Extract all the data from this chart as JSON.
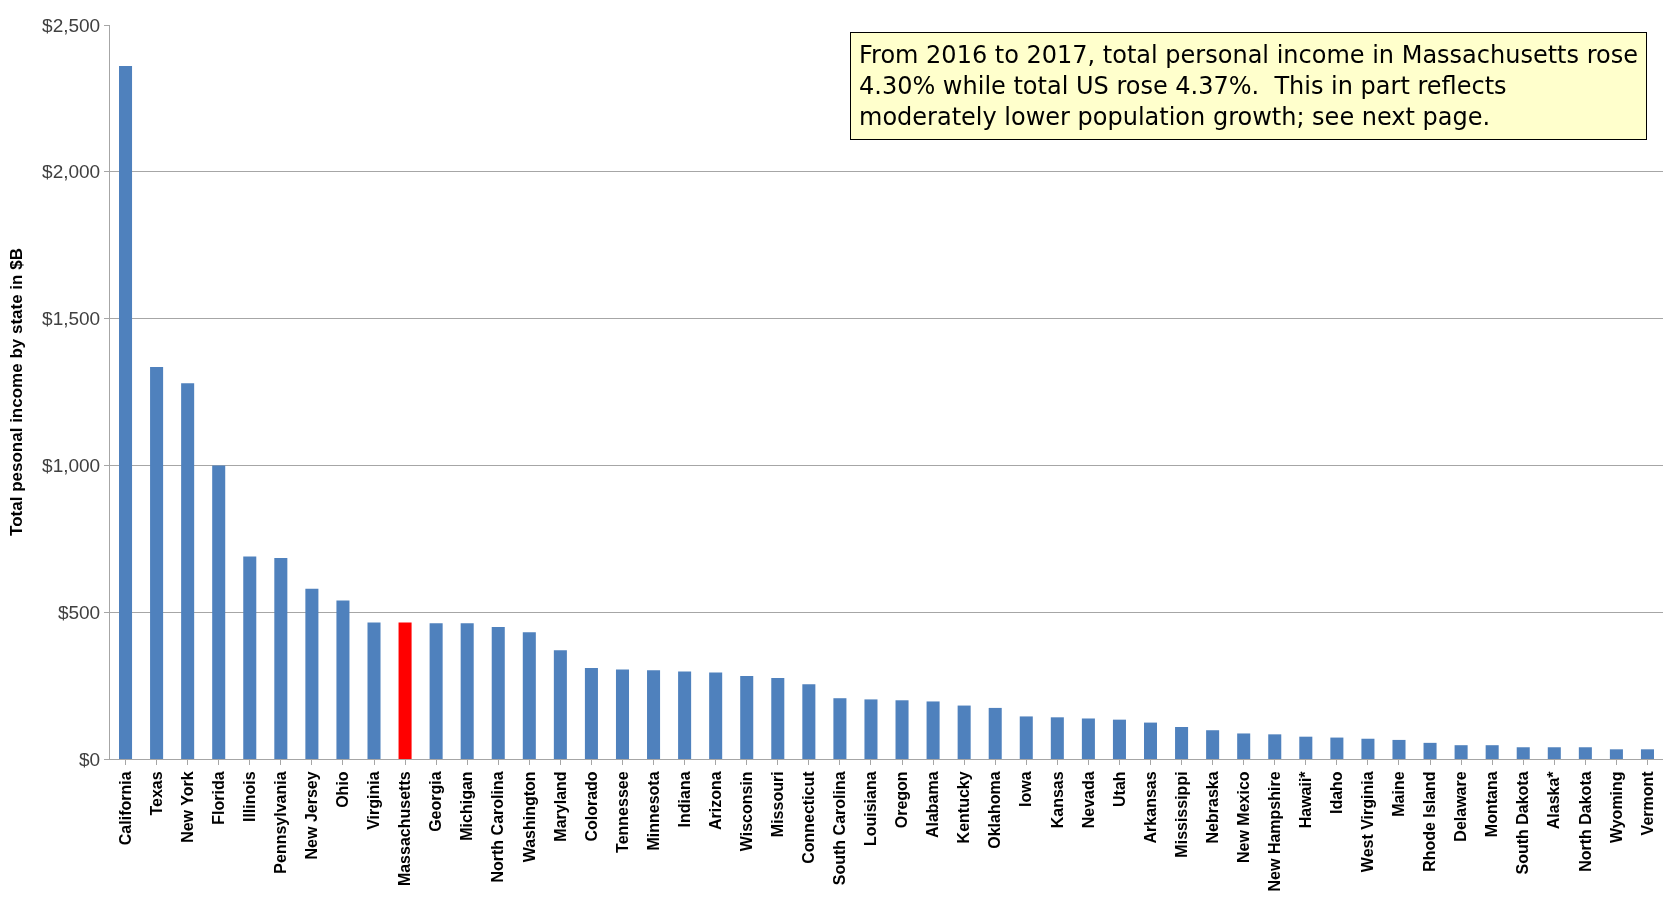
{
  "chart_data": {
    "type": "bar",
    "ylabel": "Total pesonal income by state in $B",
    "categories": [
      "California",
      "Texas",
      "New York",
      "Florida",
      "Illinois",
      "Pennsylvania",
      "New Jersey",
      "Ohio",
      "Virginia",
      "Massachusetts",
      "Georgia",
      "Michigan",
      "North Carolina",
      "Washington",
      "Maryland",
      "Colorado",
      "Tennessee",
      "Minnesota",
      "Indiana",
      "Arizona",
      "Wisconsin",
      "Missouri",
      "Connecticut",
      "South Carolina",
      "Louisiana",
      "Oregon",
      "Alabama",
      "Kentucky",
      "Oklahoma",
      "Iowa",
      "Kansas",
      "Nevada",
      "Utah",
      "Arkansas",
      "Mississippi",
      "Nebraska",
      "New Mexico",
      "New Hampshire",
      "Hawaii*",
      "Idaho",
      "West Virginia",
      "Maine",
      "Rhode Island",
      "Delaware",
      "Montana",
      "South Dakota",
      "Alaska*",
      "North Dakota",
      "Wyoming",
      "Vermont"
    ],
    "values": [
      2360,
      1335,
      1280,
      1000,
      690,
      685,
      580,
      540,
      465,
      465,
      462,
      462,
      450,
      432,
      370,
      310,
      305,
      302,
      298,
      295,
      283,
      276,
      255,
      207,
      203,
      200,
      196,
      182,
      174,
      145,
      142,
      138,
      134,
      124,
      109,
      98,
      87,
      84,
      76,
      73,
      69,
      65,
      55,
      47,
      47,
      40,
      40,
      40,
      33,
      33
    ],
    "colors": [
      "#4f81bd",
      "#4f81bd",
      "#4f81bd",
      "#4f81bd",
      "#4f81bd",
      "#4f81bd",
      "#4f81bd",
      "#4f81bd",
      "#4f81bd",
      "#ff0000",
      "#4f81bd",
      "#4f81bd",
      "#4f81bd",
      "#4f81bd",
      "#4f81bd",
      "#4f81bd",
      "#4f81bd",
      "#4f81bd",
      "#4f81bd",
      "#4f81bd",
      "#4f81bd",
      "#4f81bd",
      "#4f81bd",
      "#4f81bd",
      "#4f81bd",
      "#4f81bd",
      "#4f81bd",
      "#4f81bd",
      "#4f81bd",
      "#4f81bd",
      "#4f81bd",
      "#4f81bd",
      "#4f81bd",
      "#4f81bd",
      "#4f81bd",
      "#4f81bd",
      "#4f81bd",
      "#4f81bd",
      "#4f81bd",
      "#4f81bd",
      "#4f81bd",
      "#4f81bd",
      "#4f81bd",
      "#4f81bd",
      "#4f81bd",
      "#4f81bd",
      "#4f81bd",
      "#4f81bd",
      "#4f81bd",
      "#4f81bd"
    ],
    "ylim": [
      0,
      2500
    ],
    "yticks": [
      {
        "value": 0,
        "label": "$0"
      },
      {
        "value": 500,
        "label": "$500"
      },
      {
        "value": 1000,
        "label": "$1,000"
      },
      {
        "value": 1500,
        "label": "$1,500"
      },
      {
        "value": 2000,
        "label": "$2,000"
      },
      {
        "value": 2500,
        "label": "$2,500"
      }
    ],
    "grid": "y",
    "annotations": [
      "From 2016 to 2017, total personal income in Massachusetts rose 4.30% while total US rose 4.37%.  This in part reflects moderately lower population growth; see next page."
    ]
  }
}
